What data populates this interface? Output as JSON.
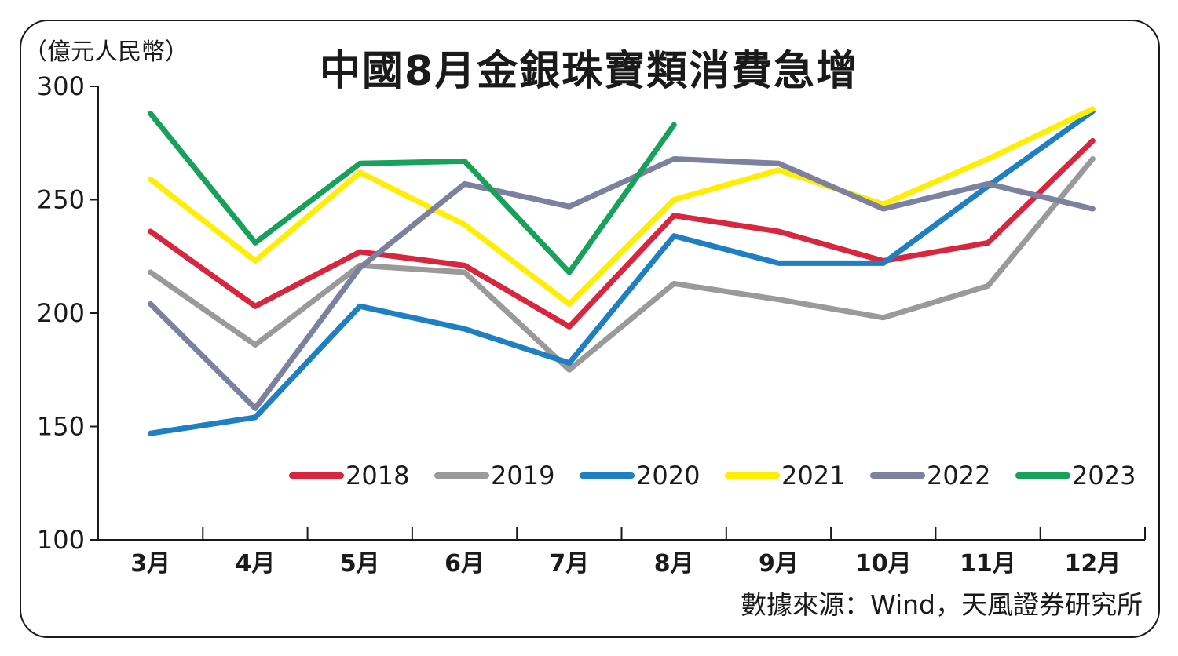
{
  "chart_data": {
    "type": "line",
    "title": "中國8月金銀珠寶類消費急增",
    "unit_label": "（億元人民幣）",
    "source": "數據來源：Wind，天風證券研究所",
    "categories": [
      "3月",
      "4月",
      "5月",
      "6月",
      "7月",
      "8月",
      "9月",
      "10月",
      "11月",
      "12月"
    ],
    "ylim": [
      100,
      300
    ],
    "yticks": [
      "100",
      "150",
      "200",
      "250",
      "300"
    ],
    "legend_position": "bottom-right",
    "grid": false,
    "series": [
      {
        "name": "2018",
        "color": "#d7263d",
        "values": [
          236,
          203,
          227,
          221,
          194,
          243,
          236,
          223,
          231,
          276
        ]
      },
      {
        "name": "2019",
        "color": "#9a9a9a",
        "values": [
          218,
          186,
          221,
          218,
          175,
          213,
          206,
          198,
          212,
          268
        ]
      },
      {
        "name": "2020",
        "color": "#1e7fc2",
        "values": [
          147,
          154,
          203,
          193,
          178,
          234,
          222,
          222,
          256,
          289
        ]
      },
      {
        "name": "2021",
        "color": "#ffee00",
        "values": [
          259,
          223,
          262,
          239,
          204,
          250,
          263,
          248,
          268,
          290
        ]
      },
      {
        "name": "2022",
        "color": "#7b819e",
        "values": [
          204,
          158,
          220,
          257,
          247,
          268,
          266,
          246,
          257,
          246
        ]
      },
      {
        "name": "2023",
        "color": "#18a15a",
        "values": [
          288,
          231,
          266,
          267,
          218,
          283,
          null,
          null,
          null,
          null
        ]
      }
    ]
  }
}
